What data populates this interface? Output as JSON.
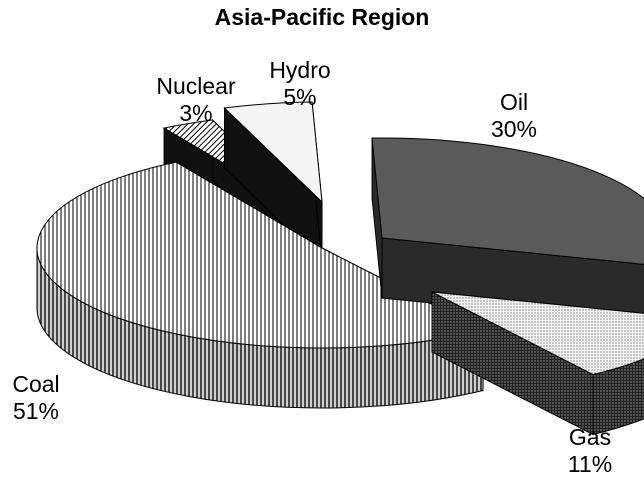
{
  "chart_data": {
    "type": "pie",
    "title": "Asia-Pacific Region",
    "slices": [
      {
        "name": "Oil",
        "label": "30%",
        "value": 30,
        "exploded": true,
        "color": "#5a5a5a",
        "side_color": "#2a2a2a",
        "pattern": "solid"
      },
      {
        "name": "Gas",
        "label": "11%",
        "value": 11,
        "exploded": true,
        "color": "#e8e8e8",
        "side_color": "#8a8a8a",
        "pattern": "dots"
      },
      {
        "name": "Coal",
        "label": "51%",
        "value": 51,
        "exploded": false,
        "color": "#ffffff",
        "side_color": "#ffffff",
        "pattern": "vertical-lines"
      },
      {
        "name": "Nuclear",
        "label": "3%",
        "value": 3,
        "exploded": false,
        "color": "#ffffff",
        "side_color": "#111111",
        "pattern": "diagonal-lines"
      },
      {
        "name": "Hydro",
        "label": "5%",
        "value": 5,
        "exploded": false,
        "color": "#f4f4f4",
        "side_color": "#111111",
        "pattern": "solid"
      }
    ],
    "view": "3d-exploded"
  }
}
